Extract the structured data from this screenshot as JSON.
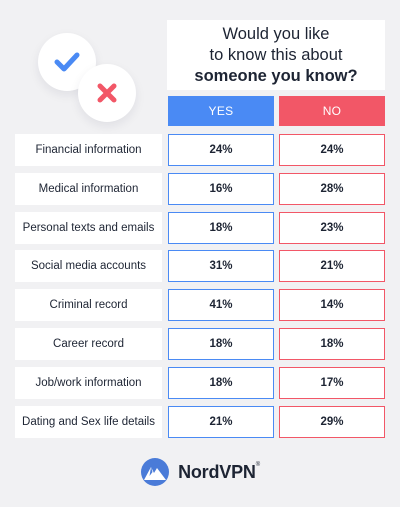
{
  "title": {
    "line1": "Would you like",
    "line2": "to know this about",
    "line3": "someone you know?"
  },
  "header": {
    "yes": "YES",
    "no": "NO"
  },
  "icons": {
    "yes": "check-icon",
    "no": "cross-icon"
  },
  "colors": {
    "yes": "#4a8af4",
    "no": "#f25767",
    "background": "#f1f1f3",
    "text": "#1d2433"
  },
  "chart_data": {
    "type": "table",
    "columns": [
      "YES",
      "NO"
    ],
    "rows": [
      {
        "label": "Financial information",
        "yes": "24%",
        "no": "24%"
      },
      {
        "label": "Medical information",
        "yes": "16%",
        "no": "28%"
      },
      {
        "label": "Personal texts and emails",
        "yes": "18%",
        "no": "23%"
      },
      {
        "label": "Social media accounts",
        "yes": "31%",
        "no": "21%"
      },
      {
        "label": "Criminal record",
        "yes": "41%",
        "no": "14%"
      },
      {
        "label": "Career record",
        "yes": "18%",
        "no": "18%"
      },
      {
        "label": "Job/work information",
        "yes": "18%",
        "no": "17%"
      },
      {
        "label": "Dating and Sex life details",
        "yes": "21%",
        "no": "29%"
      }
    ]
  },
  "brand": {
    "name": "NordVPN",
    "mark": "®",
    "logo": "nordvpn-mountain-icon"
  }
}
